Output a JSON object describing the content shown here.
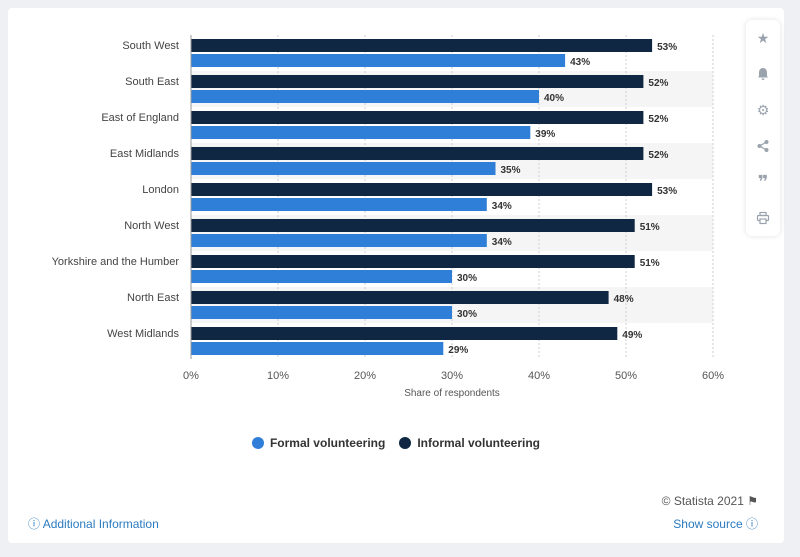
{
  "chart_data": {
    "type": "bar",
    "orientation": "horizontal",
    "categories": [
      "South West",
      "South East",
      "East of England",
      "East Midlands",
      "London",
      "North West",
      "Yorkshire and the Humber",
      "North East",
      "West Midlands"
    ],
    "series": [
      {
        "name": "Informal volunteering",
        "color": "#0f2742",
        "values": [
          53,
          52,
          52,
          52,
          53,
          51,
          51,
          48,
          49
        ],
        "labels": [
          "53%",
          "52%",
          "52%",
          "52%",
          "53%",
          "51%",
          "51%",
          "48%",
          "49%"
        ]
      },
      {
        "name": "Formal volunteering",
        "color": "#2f7ed8",
        "values": [
          43,
          40,
          39,
          35,
          34,
          34,
          30,
          30,
          29
        ],
        "labels": [
          "43%",
          "40%",
          "39%",
          "35%",
          "34%",
          "34%",
          "30%",
          "30%",
          "29%"
        ]
      }
    ],
    "xlim": [
      0,
      60
    ],
    "xticks": [
      0,
      10,
      20,
      30,
      40,
      50,
      60
    ],
    "xtick_labels": [
      "0%",
      "10%",
      "20%",
      "30%",
      "40%",
      "50%",
      "60%"
    ],
    "xlabel": "Share of respondents",
    "ylabel": "",
    "title": "",
    "grid": true,
    "legend_position": "bottom"
  },
  "legend": {
    "items": [
      {
        "label": "Formal volunteering",
        "color": "#2f7ed8"
      },
      {
        "label": "Informal volunteering",
        "color": "#0f2742"
      }
    ]
  },
  "toolbar": {
    "icons": [
      "star-icon",
      "bell-icon",
      "gear-icon",
      "share-icon",
      "quote-icon",
      "print-icon"
    ]
  },
  "footer": {
    "copyright": "© Statista 2021",
    "additional_info": "Additional Information",
    "show_source": "Show source"
  }
}
